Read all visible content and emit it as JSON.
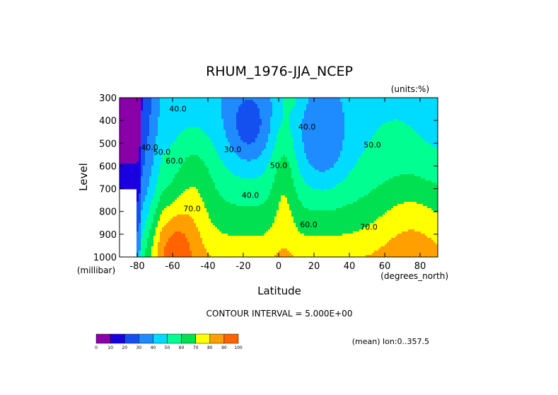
{
  "chart_data": {
    "type": "contour",
    "title": "RHUM_1976-JJA_NCEP",
    "units_label": "(units:%)",
    "xlabel": "Latitude",
    "ylabel": "Level",
    "x_unit_label": "(degrees_north)",
    "y_unit_label": "(millibar)",
    "xlim": [
      -90,
      90
    ],
    "ylim": [
      1000,
      300
    ],
    "x_ticks": [
      -80,
      -60,
      -40,
      -20,
      0,
      20,
      40,
      60,
      80
    ],
    "y_ticks": [
      300,
      400,
      500,
      600,
      700,
      800,
      900,
      1000
    ],
    "contour_interval_text": "CONTOUR INTERVAL = 5.000E+00",
    "footer_text": "(mean) lon:0..357.5",
    "levels": [
      0,
      10,
      20,
      30,
      40,
      50,
      60,
      70,
      80,
      90,
      100
    ],
    "colors": [
      "#8a00a8",
      "#1a00e0",
      "#1450f0",
      "#1e8cff",
      "#00dcff",
      "#00ff90",
      "#00e050",
      "#ffff00",
      "#ffa000",
      "#ff6400",
      "#ff0000"
    ],
    "colorbar_labels": [
      "0",
      "10",
      "20",
      "30",
      "40",
      "50",
      "60",
      "70",
      "80",
      "90",
      "100"
    ],
    "contour_labels": [
      {
        "text": "40.0",
        "lat": -57,
        "lev": 360
      },
      {
        "text": "40.0",
        "lat": -73,
        "lev": 530
      },
      {
        "text": "50.0",
        "lat": -66,
        "lev": 550
      },
      {
        "text": "60.0",
        "lat": -59,
        "lev": 590
      },
      {
        "text": "70.0",
        "lat": -49,
        "lev": 800
      },
      {
        "text": "30.0",
        "lat": -26,
        "lev": 540
      },
      {
        "text": "40.0",
        "lat": -16,
        "lev": 740
      },
      {
        "text": "50.0",
        "lat": 0,
        "lev": 610
      },
      {
        "text": "40.0",
        "lat": 16,
        "lev": 440
      },
      {
        "text": "60.0",
        "lat": 17,
        "lev": 870
      },
      {
        "text": "50.0",
        "lat": 53,
        "lev": 520
      },
      {
        "text": "70.0",
        "lat": 51,
        "lev": 880
      }
    ],
    "grid": false
  }
}
